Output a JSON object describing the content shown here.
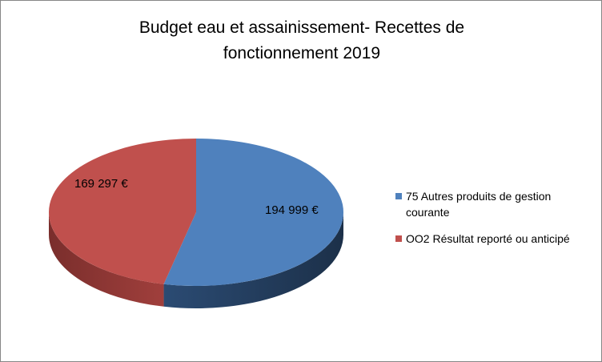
{
  "chart_data": {
    "type": "pie",
    "title": [
      "Budget eau et assainissement- Recettes de",
      "fonctionnement 2019"
    ],
    "categories": [
      "75 Autres produits de gestion courante",
      "OO2 Résultat reporté ou anticipé"
    ],
    "values": [
      194999,
      169297
    ],
    "data_labels": [
      "194 999 €",
      "169 297 €"
    ],
    "colors": [
      "#4F81BD",
      "#C0504D"
    ],
    "legend": {
      "position": "right",
      "entries": [
        {
          "lines": [
            "75 Autres produits de gestion",
            "courante"
          ]
        },
        {
          "lines": [
            "OO2 Résultat reporté ou anticipé"
          ]
        }
      ]
    },
    "style": "3d"
  }
}
